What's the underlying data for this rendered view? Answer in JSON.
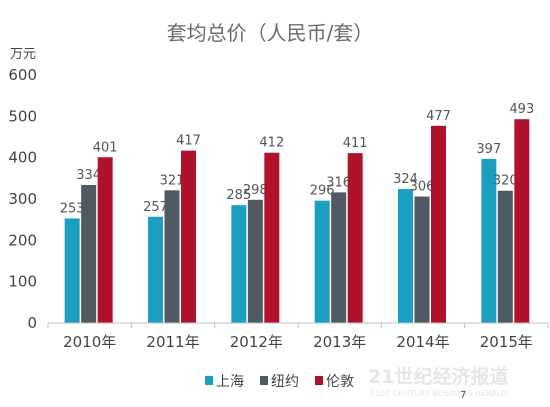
{
  "chart_data": {
    "type": "bar",
    "title": "套均总价（人民币/套）",
    "unit_label": "万元",
    "categories": [
      "2010年",
      "2011年",
      "2012年",
      "2013年",
      "2014年",
      "2015年"
    ],
    "series": [
      {
        "name": "上海",
        "color": "#1a9fc0",
        "values": [
          253,
          257,
          285,
          296,
          324,
          397
        ]
      },
      {
        "name": "纽约",
        "color": "#505a63",
        "values": [
          334,
          321,
          298,
          316,
          306,
          320
        ]
      },
      {
        "name": "伦敦",
        "color": "#b0112b",
        "values": [
          401,
          417,
          412,
          411,
          477,
          493
        ]
      }
    ],
    "ylim": [
      0,
      600
    ],
    "yticks": [
      0,
      100,
      200,
      300,
      400,
      500,
      600
    ],
    "grid": false,
    "legend_position": "bottom"
  },
  "watermark": {
    "main": "21世纪经济报道",
    "sub": "21ST CENTURY BUSINESS HERALD",
    "page_number": "7"
  }
}
